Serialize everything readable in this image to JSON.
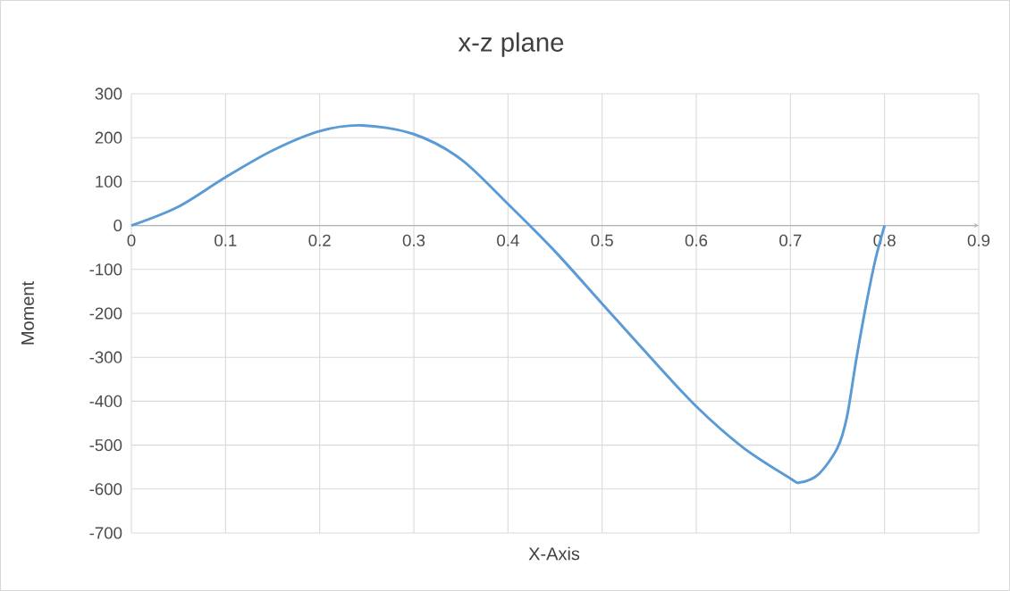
{
  "chart_data": {
    "type": "line",
    "title": "x-z plane",
    "xlabel": "X-Axis",
    "ylabel": "Moment",
    "x": [
      0,
      0.05,
      0.1,
      0.15,
      0.2,
      0.245,
      0.3,
      0.35,
      0.4,
      0.45,
      0.5,
      0.55,
      0.6,
      0.65,
      0.7,
      0.71,
      0.73,
      0.75,
      0.76,
      0.77,
      0.78,
      0.79,
      0.8
    ],
    "series": [
      {
        "color": "#5b9bd5",
        "values": [
          0,
          43,
          110,
          171,
          215,
          228,
          208,
          151,
          49,
          -59,
          -178,
          -297,
          -412,
          -506,
          -576,
          -585,
          -566,
          -506,
          -436,
          -304,
          -185,
          -80,
          0
        ]
      }
    ],
    "xlim": [
      0,
      0.9
    ],
    "xticks": [
      0,
      0.1,
      0.2,
      0.3,
      0.4,
      0.5,
      0.6,
      0.7,
      0.8,
      0.9
    ],
    "ylim": [
      -700,
      300
    ],
    "yticks": [
      -700,
      -600,
      -500,
      -400,
      -300,
      -200,
      -100,
      0,
      100,
      200,
      300
    ],
    "grid": true,
    "marker": "none",
    "line_style": "solid"
  }
}
